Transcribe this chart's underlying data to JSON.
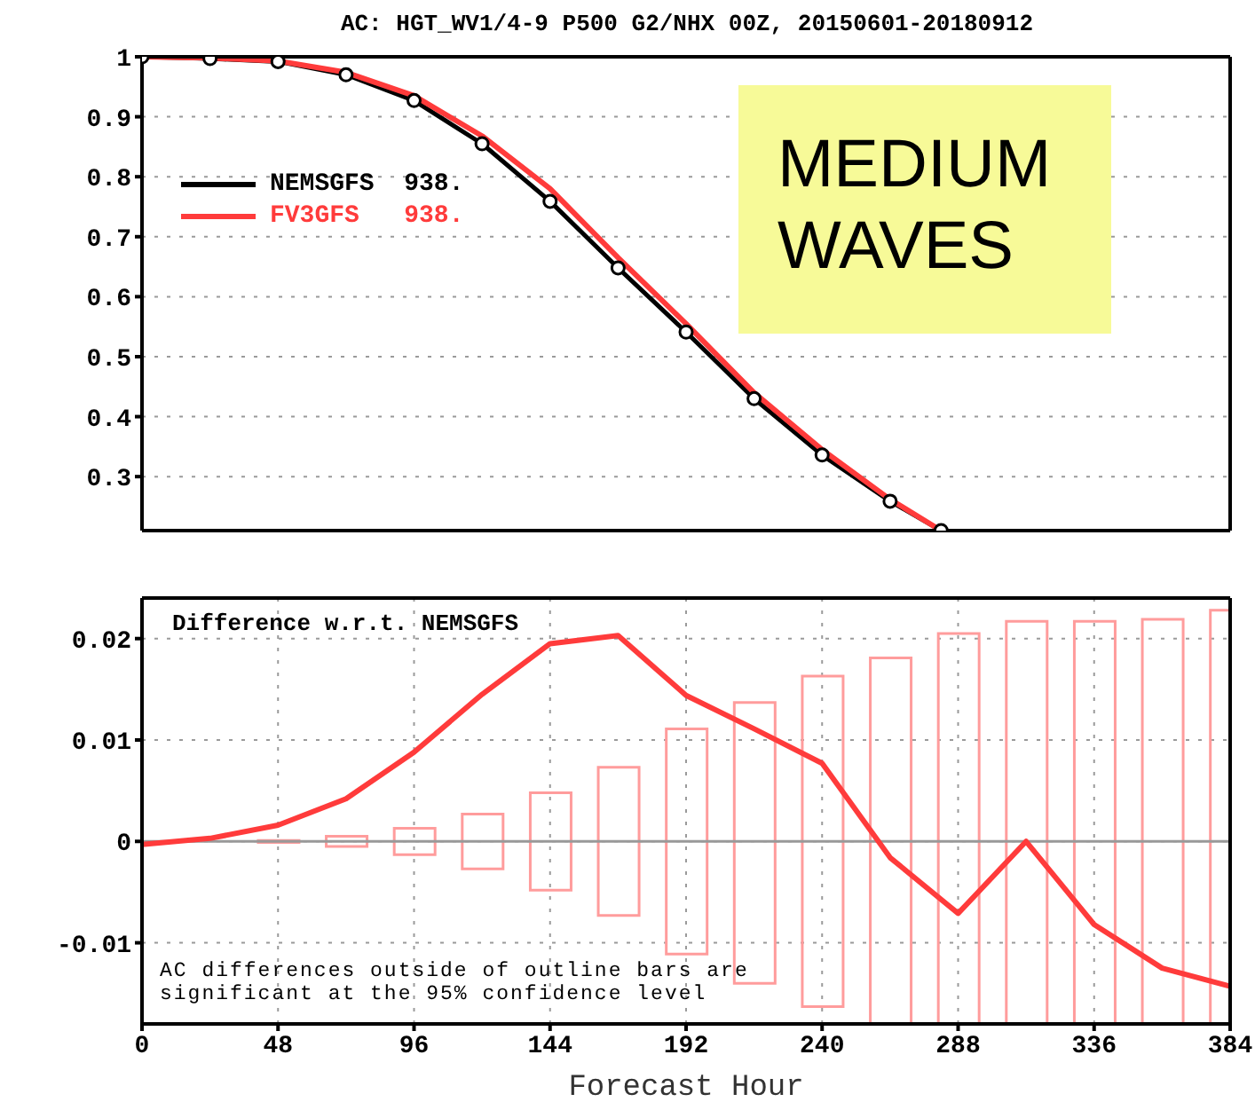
{
  "chart_data": [
    {
      "type": "line",
      "title": "AC: HGT_WV1/4-9 P500 G2/NHX 00Z, 20150601-20180912",
      "xlim": [
        0,
        384
      ],
      "xticks": [
        0,
        48,
        96,
        144,
        192,
        240,
        288,
        336,
        384
      ],
      "ylim": [
        0.21,
        1
      ],
      "yticks": [
        0.3,
        0.4,
        0.5,
        0.6,
        0.7,
        0.8,
        0.9,
        1
      ],
      "tick_labels": "y",
      "grid": true,
      "legend": "top left",
      "annotations": [
        "MEDIUM WAVES"
      ],
      "series": [
        {
          "name": "NEMSGFS  938.",
          "color": "#000000",
          "marker": "circle",
          "x": [
            0,
            24,
            48,
            72,
            96,
            120,
            144,
            168,
            192,
            216,
            240,
            264,
            282
          ],
          "values": [
            1,
            0.997,
            0.992,
            0.97,
            0.927,
            0.855,
            0.759,
            0.648,
            0.541,
            0.43,
            0.336,
            0.259,
            0.21
          ]
        },
        {
          "name": "FV3GFS   938.",
          "color": "#ff3b3b",
          "marker": "none",
          "x": [
            0,
            24,
            48,
            72,
            96,
            120,
            144,
            168,
            192,
            216,
            240,
            264,
            282
          ],
          "values": [
            1,
            0.998,
            0.993,
            0.974,
            0.935,
            0.868,
            0.78,
            0.665,
            0.555,
            0.44,
            0.345,
            0.262,
            0.21
          ]
        }
      ]
    },
    {
      "type": "line",
      "xlabel": "Forecast Hour",
      "xlim": [
        0,
        384
      ],
      "xticks": [
        0,
        48,
        96,
        144,
        192,
        240,
        288,
        336,
        384
      ],
      "ylim": [
        -0.018,
        0.024
      ],
      "yticks": [
        -0.01,
        0,
        0.01,
        0.02
      ],
      "grid": true,
      "annotations": [
        "Difference w.r.t. NEMSGFS",
        "AC differences outside of outline bars are significant at the 95% confidence level"
      ],
      "ref_lines": [
        {
          "axis": "y",
          "value": 0,
          "color": "#999999"
        }
      ],
      "series": [
        {
          "type": "bar",
          "color": "#ff9c9c",
          "x": [
            48,
            72,
            96,
            120,
            144,
            168,
            192,
            216,
            240,
            264,
            288,
            312,
            336,
            360,
            384
          ],
          "base": [
            -0.0001,
            -0.0005,
            -0.0013,
            -0.0027,
            -0.0048,
            -0.0073,
            -0.0111,
            -0.014,
            -0.0163,
            -0.018,
            -0.018,
            -0.018,
            -0.018,
            -0.018,
            -0.018
          ],
          "values": [
            0.0002,
            0.001,
            0.0026,
            0.0054,
            0.0096,
            0.0146,
            0.0222,
            0.0277,
            0.0326,
            0.0361,
            0.0385,
            0.0397,
            0.0397,
            0.0399,
            0.0408
          ]
        },
        {
          "color": "#ff3b3b",
          "marker": "none",
          "x": [
            0,
            24,
            48,
            72,
            96,
            120,
            144,
            168,
            192,
            216,
            240,
            264,
            288,
            312,
            336,
            360,
            384
          ],
          "values": [
            -0.0003,
            0.0003,
            0.0016,
            0.0042,
            0.0088,
            0.0145,
            0.0195,
            0.0203,
            0.0144,
            0.0111,
            0.0077,
            -0.0016,
            -0.0071,
            0,
            -0.0082,
            -0.0125,
            -0.0143
          ]
        }
      ]
    }
  ]
}
